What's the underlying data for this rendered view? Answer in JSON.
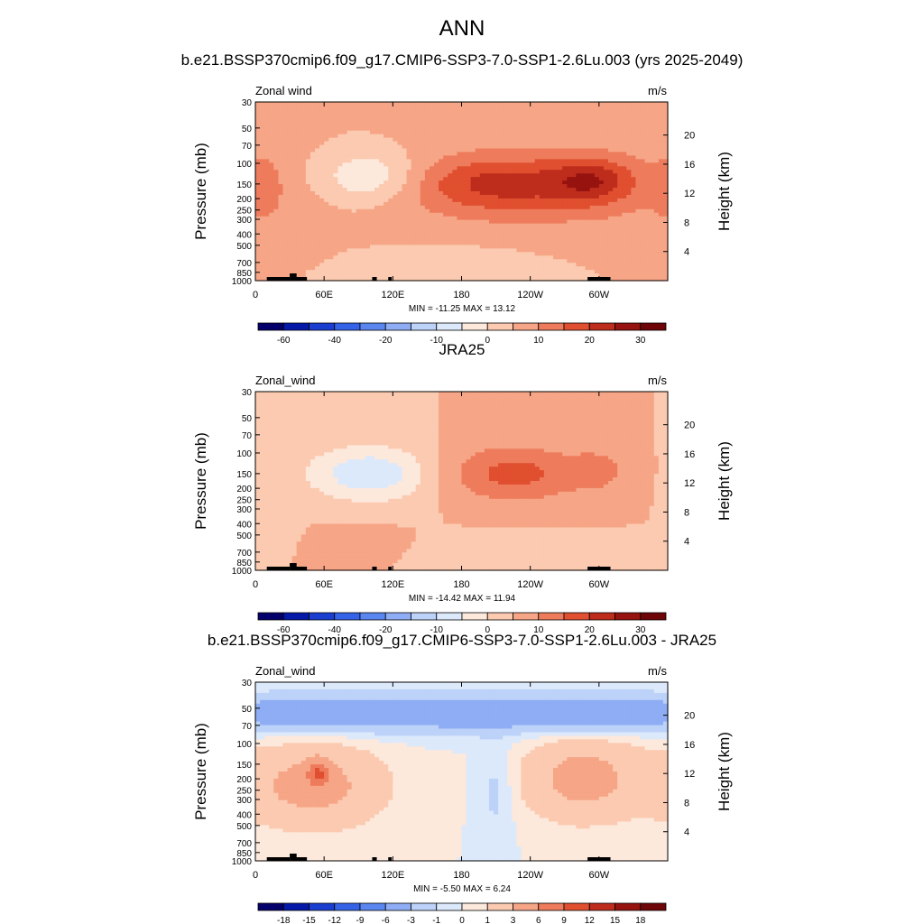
{
  "main_title": "ANN",
  "panels": [
    {
      "title": "b.e21.BSSP370cmip6.f09_g17.CMIP6-SSP3-7.0-SSP1-2.6Lu.003 (yrs 2025-2049)",
      "var_label": "Zonal wind",
      "units": "m/s",
      "stats": "MIN = -11.25  MAX =  13.12",
      "colorbar_labels": [
        "-60",
        "-40",
        "-20",
        "-10",
        "0",
        "10",
        "20",
        "30"
      ]
    },
    {
      "title": "JRA25",
      "var_label": "Zonal_wind",
      "units": "m/s",
      "stats": "MIN = -14.42  MAX =  11.94",
      "colorbar_labels": [
        "-60",
        "-40",
        "-20",
        "-10",
        "0",
        "10",
        "20",
        "30"
      ]
    },
    {
      "title": "b.e21.BSSP370cmip6.f09_g17.CMIP6-SSP3-7.0-SSP1-2.6Lu.003 - JRA25",
      "var_label": "Zonal_wind",
      "units": "m/s",
      "stats": "MIN =  -5.50  MAX =   6.24",
      "colorbar_labels": [
        "-18",
        "-15",
        "-12",
        "-9",
        "-6",
        "-3",
        "-1",
        "0",
        "1",
        "3",
        "6",
        "9",
        "12",
        "15",
        "18"
      ]
    }
  ],
  "colors": {
    "abs_palette": [
      "#04006b",
      "#0419a8",
      "#1a3fd0",
      "#3563e8",
      "#5a86ef",
      "#8eadf4",
      "#bcd2f8",
      "#dce9fb",
      "#fde8dc",
      "#fbcab0",
      "#f6a586",
      "#ee7c5c",
      "#e04f2f",
      "#be2d1c",
      "#96130f",
      "#6e0508"
    ],
    "diff_palette": [
      "#04006b",
      "#0419a8",
      "#1a3fd0",
      "#3563e8",
      "#5a86ef",
      "#8eadf4",
      "#bcd2f8",
      "#dce9fb",
      "#fde8dc",
      "#fbcab0",
      "#f6a586",
      "#ee7c5c",
      "#e04f2f",
      "#be2d1c",
      "#96130f",
      "#6e0508"
    ]
  },
  "chart_data": [
    {
      "type": "heatmap",
      "title": "b.e21.BSSP370cmip6.f09_g17.CMIP6-SSP3-7.0-SSP1-2.6Lu.003 (yrs 2025-2049)",
      "xlabel": "",
      "ylabel": "Pressure (mb)",
      "y2label": "Height (km)",
      "x_ticks": [
        "0",
        "60E",
        "120E",
        "180",
        "120W",
        "60W"
      ],
      "x_range": [
        0,
        360
      ],
      "y_ticks": [
        30,
        50,
        70,
        100,
        150,
        200,
        250,
        300,
        400,
        500,
        700,
        850,
        1000
      ],
      "y2_ticks": [
        4,
        8,
        12,
        16,
        20
      ],
      "y_range": [
        30,
        1000
      ],
      "y_scale": "log",
      "min": -11.25,
      "max": 13.12,
      "levels": [
        -70,
        -60,
        -50,
        -40,
        -30,
        -20,
        -15,
        -10,
        -5,
        0,
        5,
        10,
        15,
        20,
        25,
        30,
        35
      ],
      "features": [
        {
          "lon": 215,
          "p": 150,
          "lon_width": 80,
          "p_width": 0.55,
          "value": 13
        },
        {
          "lon": 295,
          "p": 140,
          "lon_width": 35,
          "p_width": 0.45,
          "value": 12
        },
        {
          "lon": 100,
          "p": 130,
          "lon_width": 45,
          "p_width": 0.5,
          "value": -11
        },
        {
          "lon": 265,
          "p": 170,
          "lon_width": 160,
          "p_width": 1.0,
          "value": 5
        },
        {
          "lon": 5,
          "p": 160,
          "lon_width": 18,
          "p_width": 0.6,
          "value": 6
        },
        {
          "lon": 180,
          "p": 800,
          "lon_width": 80,
          "p_width": 0.5,
          "value": -3
        }
      ]
    },
    {
      "type": "heatmap",
      "title": "JRA25",
      "xlabel": "",
      "ylabel": "Pressure (mb)",
      "y2label": "Height (km)",
      "x_ticks": [
        "0",
        "60E",
        "120E",
        "180",
        "120W",
        "60W"
      ],
      "x_range": [
        0,
        360
      ],
      "y_ticks": [
        30,
        50,
        70,
        100,
        150,
        200,
        250,
        300,
        400,
        500,
        700,
        850,
        1000
      ],
      "y2_ticks": [
        4,
        8,
        12,
        16,
        20
      ],
      "y_range": [
        30,
        1000
      ],
      "y_scale": "log",
      "min": -14.42,
      "max": 11.94,
      "levels": [
        -70,
        -60,
        -50,
        -40,
        -30,
        -20,
        -15,
        -10,
        -5,
        0,
        5,
        10,
        15,
        20,
        25,
        30,
        35
      ],
      "features": [
        {
          "lon": 225,
          "p": 150,
          "lon_width": 60,
          "p_width": 0.55,
          "value": 12
        },
        {
          "lon": 300,
          "p": 140,
          "lon_width": 25,
          "p_width": 0.4,
          "value": 6
        },
        {
          "lon": 100,
          "p": 150,
          "lon_width": 55,
          "p_width": 0.55,
          "value": -14
        },
        {
          "lon": 20,
          "p": 400,
          "lon_width": 15,
          "p_width": 0.6,
          "value": -4
        },
        {
          "lon": 200,
          "p": 850,
          "lon_width": 90,
          "p_width": 0.4,
          "value": -4
        },
        {
          "lon": 90,
          "p": 700,
          "lon_width": 40,
          "p_width": 0.4,
          "value": 5
        }
      ]
    },
    {
      "type": "heatmap",
      "title": "b.e21.BSSP370cmip6.f09_g17.CMIP6-SSP3-7.0-SSP1-2.6Lu.003 - JRA25",
      "xlabel": "",
      "ylabel": "Pressure (mb)",
      "y2label": "Height (km)",
      "x_ticks": [
        "0",
        "60E",
        "120E",
        "180",
        "120W",
        "60W"
      ],
      "x_range": [
        0,
        360
      ],
      "y_ticks": [
        30,
        50,
        70,
        100,
        150,
        200,
        250,
        300,
        400,
        500,
        700,
        850,
        1000
      ],
      "y2_ticks": [
        4,
        8,
        12,
        16,
        20
      ],
      "y_range": [
        30,
        1000
      ],
      "y_scale": "log",
      "min": -5.5,
      "max": 6.24,
      "levels": [
        -18,
        -15,
        -12,
        -9,
        -6,
        -3,
        -1,
        0,
        1,
        3,
        6,
        9,
        12,
        15,
        18
      ],
      "features": [
        {
          "lon": 180,
          "p": 55,
          "lon_width": 400,
          "p_width": 0.35,
          "value": -5.5
        },
        {
          "lon": 55,
          "p": 180,
          "lon_width": 10,
          "p_width": 0.25,
          "value": 6.2
        },
        {
          "lon": 50,
          "p": 230,
          "lon_width": 60,
          "p_width": 0.8,
          "value": 4
        },
        {
          "lon": 285,
          "p": 200,
          "lon_width": 50,
          "p_width": 0.8,
          "value": 4
        },
        {
          "lon": 210,
          "p": 250,
          "lon_width": 15,
          "p_width": 1.0,
          "value": -1.5
        }
      ]
    }
  ]
}
